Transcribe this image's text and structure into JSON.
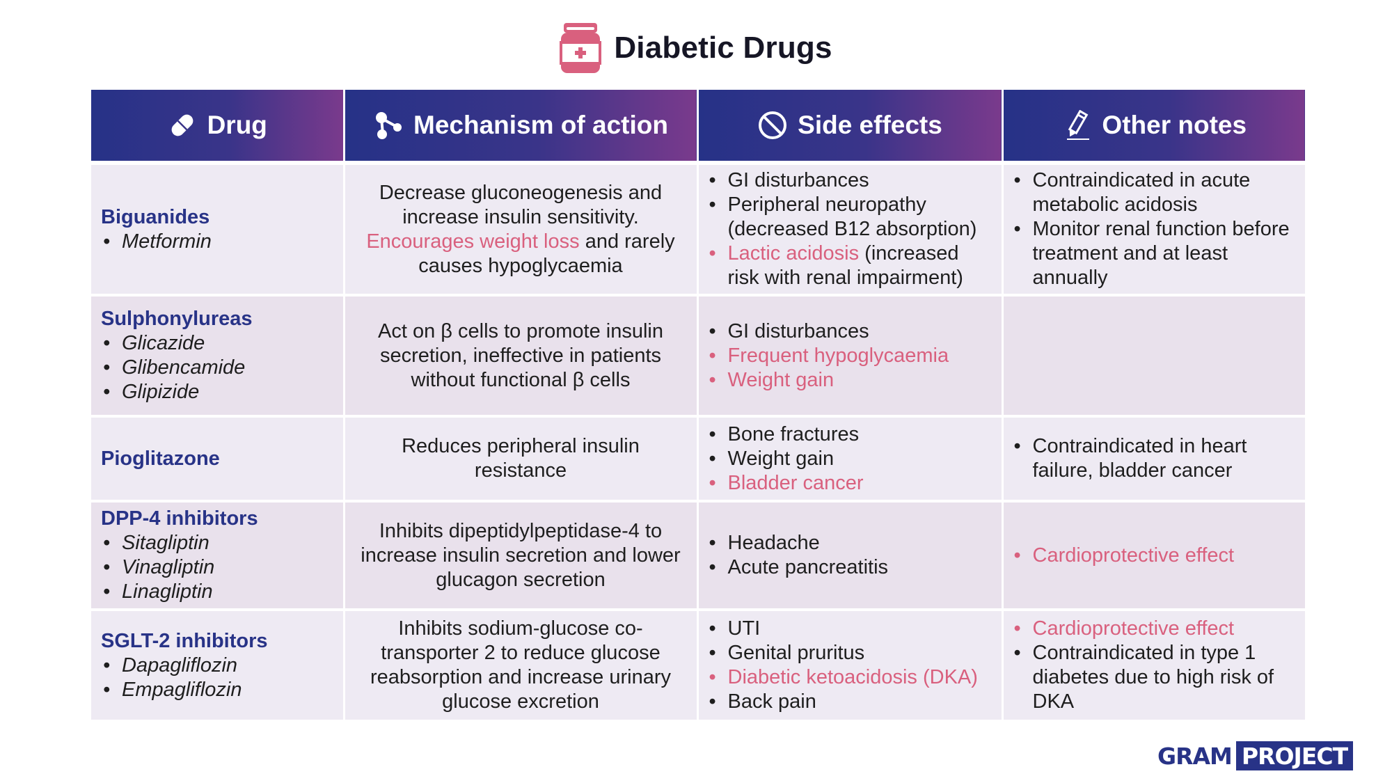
{
  "title": "Diabetic Drugs",
  "colors": {
    "header_start": "#263287",
    "header_end": "#7a3a8c",
    "drug_name": "#283387",
    "highlight": "#d9607e"
  },
  "headers": [
    {
      "label": "Drug",
      "icon": "pill-icon"
    },
    {
      "label": "Mechanism of action",
      "icon": "molecule-icon"
    },
    {
      "label": "Side effects",
      "icon": "prohibited-icon"
    },
    {
      "label": "Other notes",
      "icon": "pencil-icon"
    }
  ],
  "rows": [
    {
      "drug": "Biguanides",
      "members": [
        "Metformin"
      ],
      "mechanism_pre": "Decrease gluconeogenesis and increase insulin sensitivity.",
      "mechanism_highlight": "Encourages weight loss",
      "mechanism_post": "and rarely causes hypoglycaemia",
      "side_effects": [
        {
          "text": "GI disturbances",
          "highlight": false
        },
        {
          "text": "Peripheral neuropathy (decreased B12 absorption)",
          "highlight": false
        }
      ],
      "side_effect_special": {
        "highlight_text": "Lactic acidosis",
        "rest": "(increased risk with renal impairment)"
      },
      "notes": [
        {
          "text": "Contraindicated in acute metabolic acidosis",
          "highlight": false
        },
        {
          "text": "Monitor renal function before treatment and at least annually",
          "highlight": false
        }
      ]
    },
    {
      "drug": "Sulphonylureas",
      "members": [
        "Glicazide",
        "Glibencamide",
        "Glipizide"
      ],
      "mechanism": "Act on β cells to promote insulin secretion, ineffective in patients without functional β cells",
      "side_effects": [
        {
          "text": "GI disturbances",
          "highlight": false
        },
        {
          "text": "Frequent hypoglycaemia",
          "highlight": true
        },
        {
          "text": "Weight gain",
          "highlight": true
        }
      ],
      "notes": []
    },
    {
      "drug": "Pioglitazone",
      "members": [],
      "mechanism": "Reduces peripheral insulin resistance",
      "side_effects": [
        {
          "text": "Bone fractures",
          "highlight": false
        },
        {
          "text": "Weight gain",
          "highlight": false
        },
        {
          "text": "Bladder cancer",
          "highlight": true
        }
      ],
      "notes": [
        {
          "text": "Contraindicated in heart failure, bladder cancer",
          "highlight": false
        }
      ]
    },
    {
      "drug": "DPP-4 inhibitors",
      "members": [
        "Sitagliptin",
        "Vinagliptin",
        "Linagliptin"
      ],
      "mechanism": "Inhibits dipeptidylpeptidase-4 to increase insulin secretion and lower glucagon secretion",
      "side_effects": [
        {
          "text": "Headache",
          "highlight": false
        },
        {
          "text": "Acute pancreatitis",
          "highlight": false
        }
      ],
      "notes": [
        {
          "text": "Cardioprotective effect",
          "highlight": true
        }
      ]
    },
    {
      "drug": "SGLT-2 inhibitors",
      "members": [
        "Dapagliflozin",
        "Empagliflozin"
      ],
      "mechanism": "Inhibits sodium-glucose co-transporter 2 to reduce glucose reabsorption and increase urinary glucose excretion",
      "side_effects": [
        {
          "text": "UTI",
          "highlight": false
        },
        {
          "text": "Genital pruritus",
          "highlight": false
        },
        {
          "text": "Diabetic ketoacidosis (DKA)",
          "highlight": true
        },
        {
          "text": "Back pain",
          "highlight": false
        }
      ],
      "notes": [
        {
          "text": "Cardioprotective effect",
          "highlight": true
        },
        {
          "text": "Contraindicated in type 1 diabetes due to high risk of DKA",
          "highlight": false
        }
      ]
    }
  ],
  "logo": {
    "part1": "GRAM",
    "part2": "PROJECT"
  }
}
